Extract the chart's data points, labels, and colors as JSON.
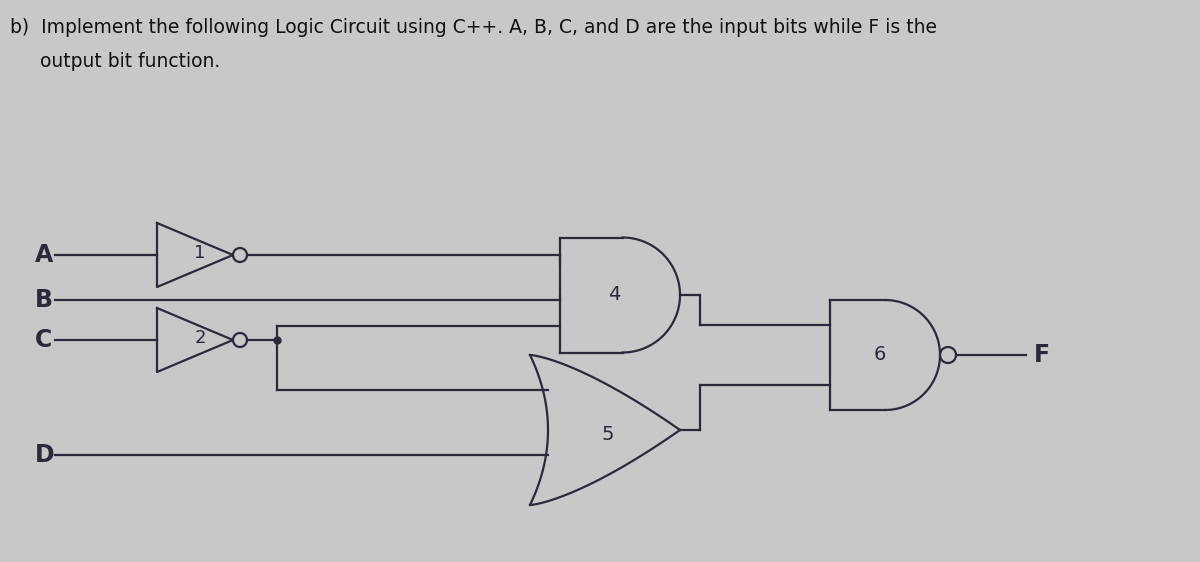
{
  "bg_color": "#c8c8c8",
  "title_line1": "b)  Implement the following Logic Circuit using C++. A, B, C, and D are the input bits while F is the",
  "title_line2": "     output bit function.",
  "title_fontsize": 13.5,
  "input_labels": [
    "A",
    "B",
    "C",
    "D"
  ],
  "output_label": "F",
  "line_color": "#2a2a3a",
  "line_width": 1.6
}
